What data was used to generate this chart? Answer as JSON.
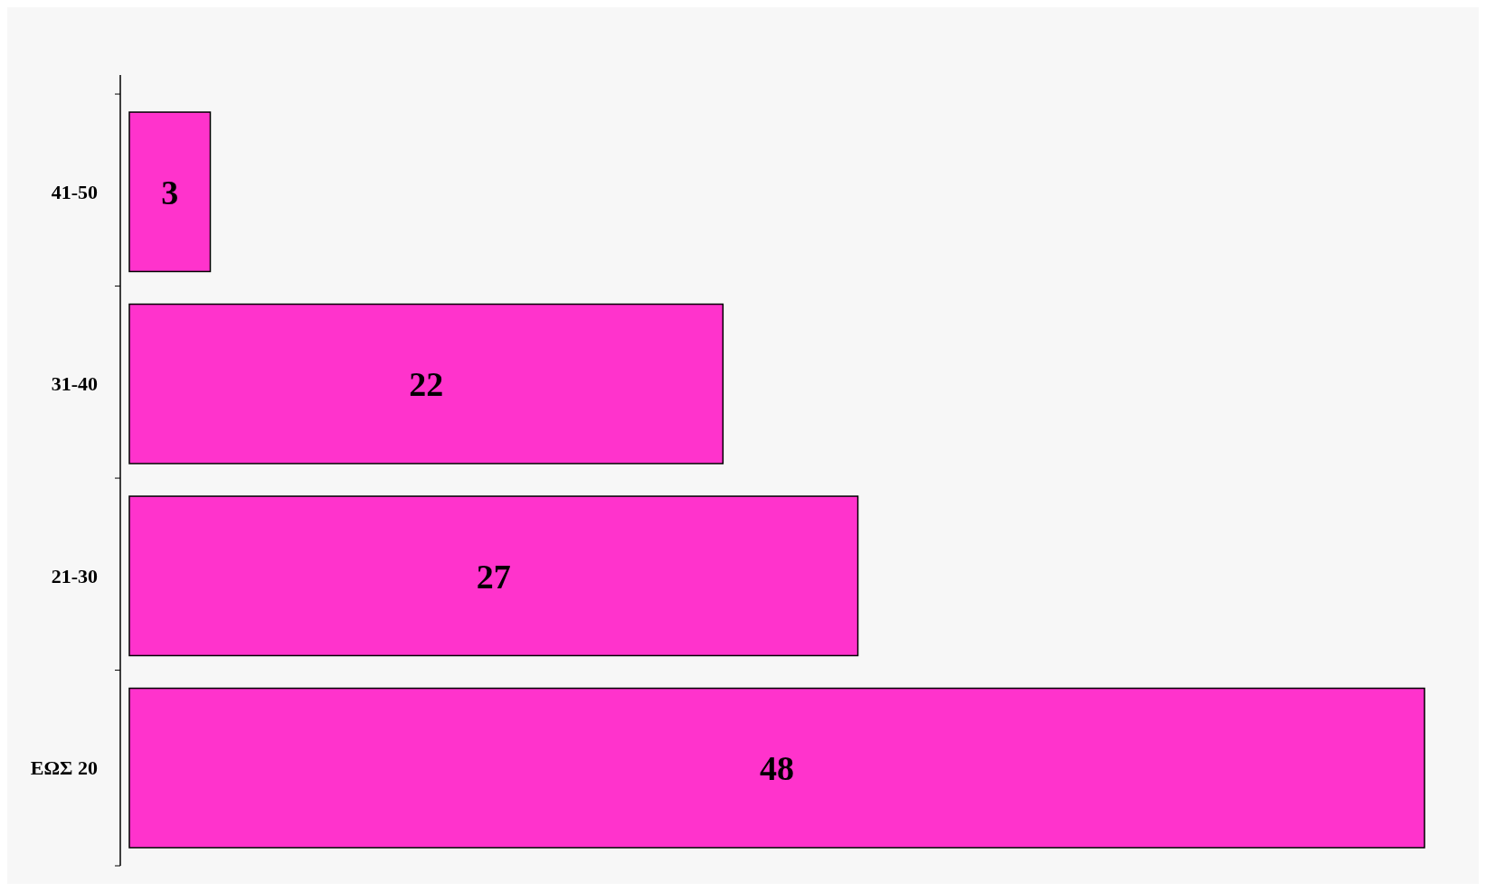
{
  "chart_data": {
    "type": "bar",
    "orientation": "horizontal",
    "categories": [
      "41-50",
      "31-40",
      "21-30",
      "ΕΩΣ 20"
    ],
    "values": [
      3,
      22,
      27,
      48
    ],
    "color": "#ff33cc",
    "data_labels": true
  }
}
